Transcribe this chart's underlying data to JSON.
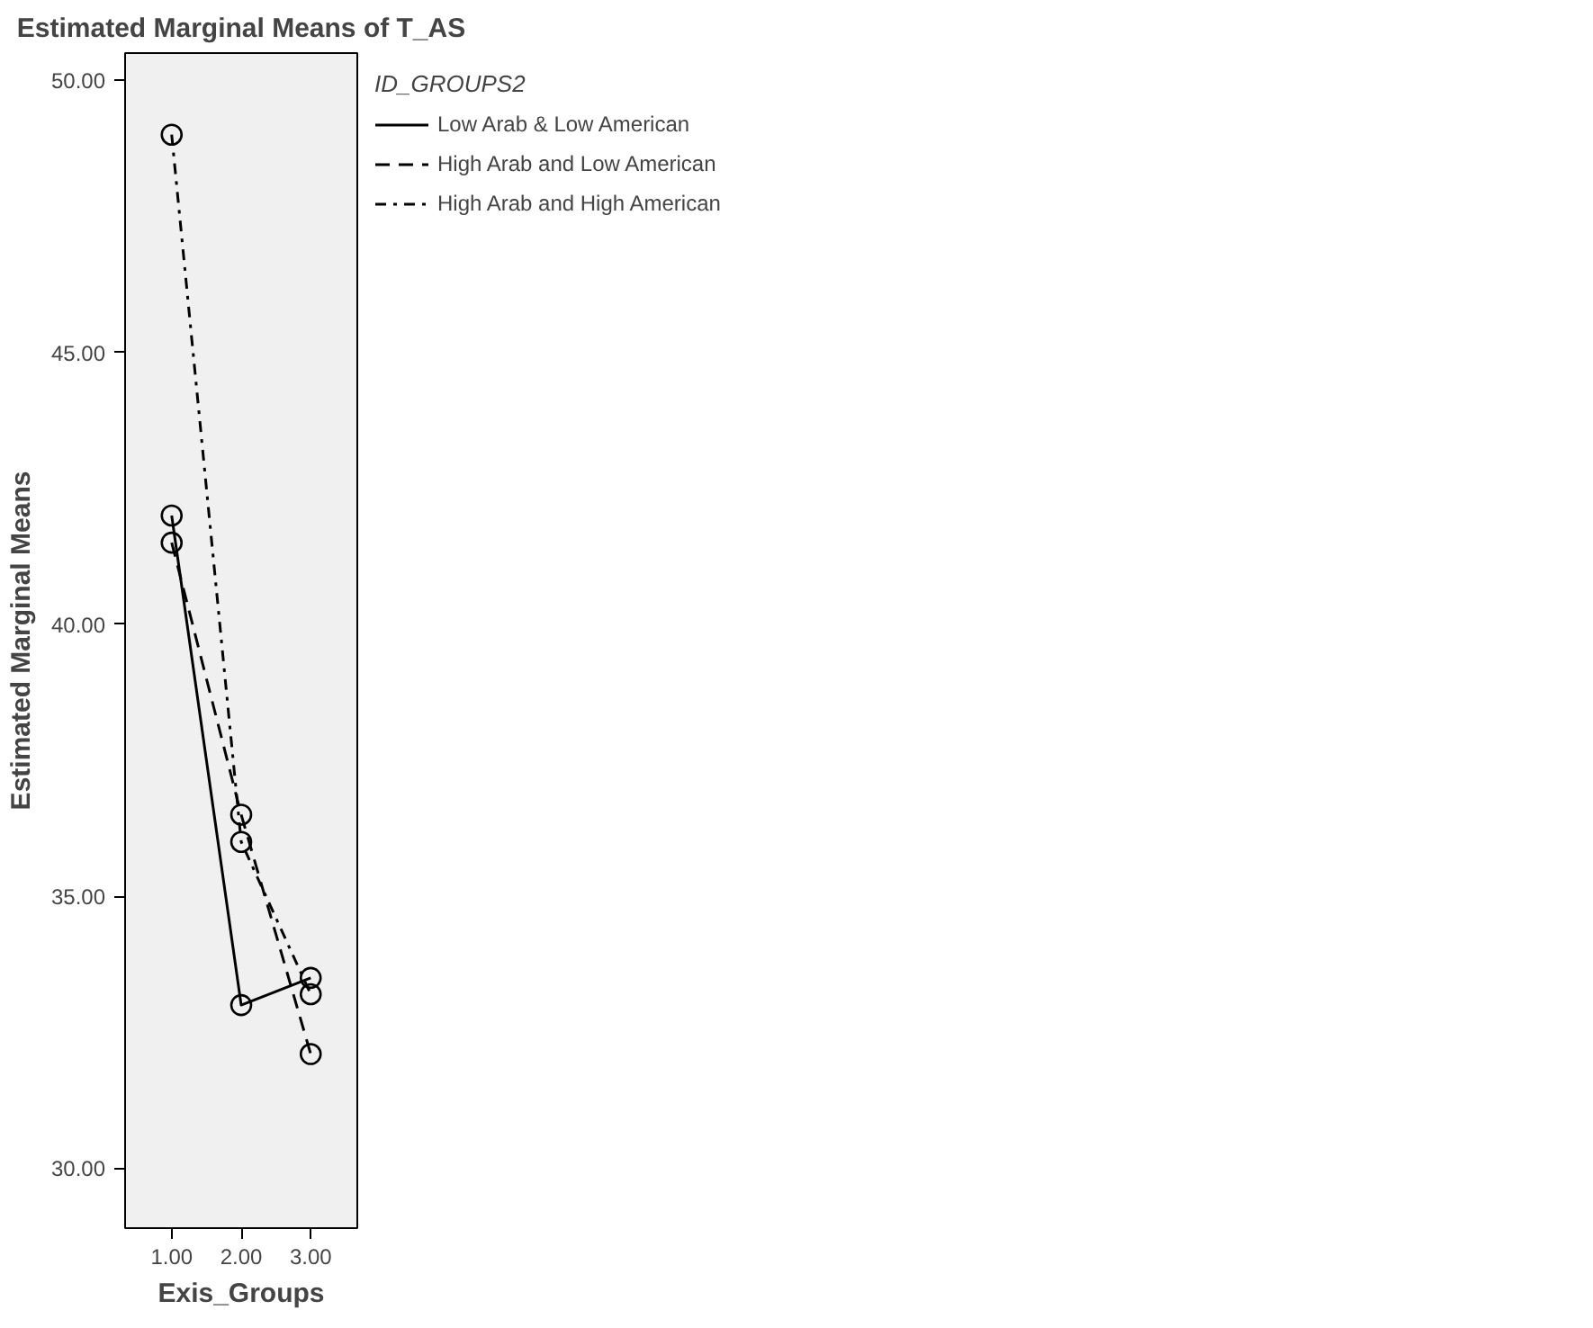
{
  "chart_data": {
    "type": "line",
    "title": "Estimated Marginal Means of T_AS",
    "xlabel": "Exis_Groups",
    "ylabel": "Estimated Marginal Means",
    "legend_title": "ID_GROUPS2",
    "legend": "top right",
    "grid": false,
    "marker": "circle",
    "x": [
      1,
      2,
      3
    ],
    "xlim": [
      0.33,
      3.67
    ],
    "xticks": [
      {
        "value": 1,
        "label": "1.00"
      },
      {
        "value": 2,
        "label": "2.00"
      },
      {
        "value": 3,
        "label": "3.00"
      }
    ],
    "ylim": [
      28.9,
      50.5
    ],
    "yticks": [
      {
        "value": 30,
        "label": "30.00"
      },
      {
        "value": 35,
        "label": "35.00"
      },
      {
        "value": 40,
        "label": "40.00"
      },
      {
        "value": 45,
        "label": "45.00"
      },
      {
        "value": 50,
        "label": "50.00"
      }
    ],
    "series": [
      {
        "name": "Low Arab & Low American",
        "color": "#000000",
        "line_style": "solid",
        "values": [
          42.0,
          33.0,
          33.5
        ]
      },
      {
        "name": "High Arab and Low American",
        "color": "#000000",
        "line_style": "dashed",
        "values": [
          41.5,
          36.5,
          32.1
        ]
      },
      {
        "name": "High Arab and High American",
        "color": "#000000",
        "line_style": "dashdot",
        "values": [
          49.0,
          36.0,
          33.2
        ]
      }
    ]
  }
}
